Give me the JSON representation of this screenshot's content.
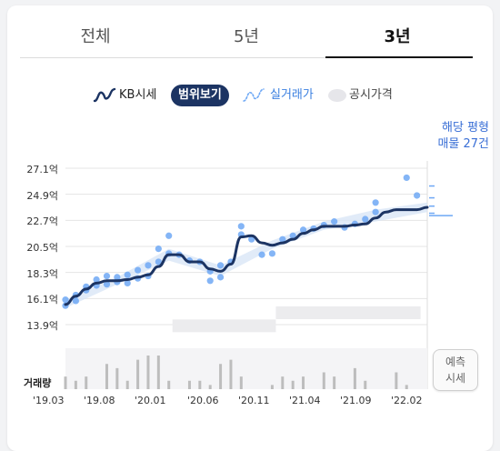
{
  "tabs": [
    {
      "label": "전체",
      "active": false
    },
    {
      "label": "5년",
      "active": false
    },
    {
      "label": "3년",
      "active": true
    }
  ],
  "legend": {
    "kb_label": "KB시세",
    "range_button": "범위보기",
    "actual_label": "실거래가",
    "official_label": "공시가격"
  },
  "note": {
    "line1": "해당 평형",
    "line2": "매물 27건"
  },
  "volume_label": "거래량",
  "predict_button": {
    "line1": "예측",
    "line2": "시세"
  },
  "colors": {
    "kb_line": "#1c3463",
    "actual": "#6ea8f5",
    "range_band": "#d7e4f5",
    "official": "#ececee",
    "active_tab": "#111111",
    "note_text": "#3a6fd6"
  },
  "chart_data": {
    "type": "line",
    "y_ticks": [
      "27.1억",
      "24.9억",
      "22.7억",
      "20.5억",
      "18.3억",
      "16.1억",
      "13.9억"
    ],
    "y_tick_values": [
      27.1,
      24.9,
      22.7,
      20.5,
      18.3,
      16.1,
      13.9
    ],
    "ylim": [
      13.9,
      27.1
    ],
    "x_ticks": [
      "'19.03",
      "'19.08",
      "'20.01",
      "'20.06",
      "'20.11",
      "'21.04",
      "'21.09",
      "'22.02"
    ],
    "xlim": [
      "2019-03",
      "2022-02"
    ],
    "series": [
      {
        "name": "KB시세",
        "x": [
          "2019-03",
          "2019-04",
          "2019-05",
          "2019-06",
          "2019-07",
          "2019-08",
          "2019-09",
          "2019-10",
          "2019-11",
          "2019-12",
          "2020-01",
          "2020-02",
          "2020-03",
          "2020-04",
          "2020-05",
          "2020-06",
          "2020-07",
          "2020-08",
          "2020-09",
          "2020-10",
          "2020-11",
          "2020-12",
          "2021-01",
          "2021-02",
          "2021-03",
          "2021-04",
          "2021-05",
          "2021-06",
          "2021-07",
          "2021-08",
          "2021-09",
          "2021-10",
          "2021-11",
          "2021-12",
          "2022-01",
          "2022-02"
        ],
        "values": [
          15.6,
          16.3,
          16.9,
          17.4,
          17.6,
          17.6,
          17.7,
          17.9,
          18.1,
          18.8,
          19.8,
          19.8,
          19.2,
          19.2,
          18.6,
          18.4,
          19.0,
          21.3,
          21.4,
          20.8,
          20.6,
          20.8,
          21.1,
          21.6,
          21.9,
          22.2,
          22.2,
          22.2,
          22.3,
          22.4,
          22.9,
          23.4,
          23.6,
          23.6,
          23.6,
          23.8
        ]
      }
    ],
    "range_band": {
      "x": [
        "2019-03",
        "2019-08",
        "2020-01",
        "2020-06",
        "2020-11",
        "2021-04",
        "2021-09",
        "2022-02"
      ],
      "low": [
        15.3,
        17.3,
        19.3,
        18.0,
        20.3,
        21.9,
        22.6,
        23.4
      ],
      "high": [
        16.0,
        17.9,
        20.3,
        18.9,
        21.0,
        22.6,
        23.6,
        24.2
      ]
    },
    "actual_trades": [
      {
        "x": "2019-03",
        "y": 15.5
      },
      {
        "x": "2019-03",
        "y": 16.0
      },
      {
        "x": "2019-04",
        "y": 15.9
      },
      {
        "x": "2019-04",
        "y": 16.4
      },
      {
        "x": "2019-05",
        "y": 16.8
      },
      {
        "x": "2019-05",
        "y": 17.1
      },
      {
        "x": "2019-06",
        "y": 17.2
      },
      {
        "x": "2019-06",
        "y": 17.7
      },
      {
        "x": "2019-07",
        "y": 17.3
      },
      {
        "x": "2019-07",
        "y": 18.0
      },
      {
        "x": "2019-08",
        "y": 17.5
      },
      {
        "x": "2019-08",
        "y": 17.9
      },
      {
        "x": "2019-09",
        "y": 17.4
      },
      {
        "x": "2019-09",
        "y": 18.1
      },
      {
        "x": "2019-10",
        "y": 17.8
      },
      {
        "x": "2019-10",
        "y": 18.5
      },
      {
        "x": "2019-11",
        "y": 18.0
      },
      {
        "x": "2019-11",
        "y": 18.9
      },
      {
        "x": "2019-12",
        "y": 19.2
      },
      {
        "x": "2019-12",
        "y": 20.3
      },
      {
        "x": "2020-01",
        "y": 19.9
      },
      {
        "x": "2020-01",
        "y": 21.4
      },
      {
        "x": "2020-02",
        "y": 19.8
      },
      {
        "x": "2020-03",
        "y": 19.3
      },
      {
        "x": "2020-04",
        "y": 19.2
      },
      {
        "x": "2020-05",
        "y": 17.6
      },
      {
        "x": "2020-05",
        "y": 18.4
      },
      {
        "x": "2020-06",
        "y": 17.9
      },
      {
        "x": "2020-06",
        "y": 18.9
      },
      {
        "x": "2020-07",
        "y": 19.2
      },
      {
        "x": "2020-08",
        "y": 21.5
      },
      {
        "x": "2020-08",
        "y": 22.2
      },
      {
        "x": "2020-09",
        "y": 21.1
      },
      {
        "x": "2020-10",
        "y": 19.8
      },
      {
        "x": "2020-11",
        "y": 19.9
      },
      {
        "x": "2020-12",
        "y": 21.1
      },
      {
        "x": "2021-01",
        "y": 21.4
      },
      {
        "x": "2021-02",
        "y": 21.9
      },
      {
        "x": "2021-03",
        "y": 22.0
      },
      {
        "x": "2021-04",
        "y": 22.3
      },
      {
        "x": "2021-05",
        "y": 22.6
      },
      {
        "x": "2021-06",
        "y": 22.1
      },
      {
        "x": "2021-07",
        "y": 22.4
      },
      {
        "x": "2021-08",
        "y": 22.8
      },
      {
        "x": "2021-09",
        "y": 23.4
      },
      {
        "x": "2021-09",
        "y": 24.2
      },
      {
        "x": "2021-12",
        "y": 26.3
      },
      {
        "x": "2022-01",
        "y": 24.8
      }
    ],
    "official_price_bars": [
      {
        "from": "2020-01",
        "to": "2020-11",
        "level": 13.8
      },
      {
        "from": "2020-11",
        "to": "2022-01",
        "level": 14.9
      }
    ],
    "volume": {
      "x": [
        "2019-03",
        "2019-04",
        "2019-05",
        "2019-06",
        "2019-07",
        "2019-08",
        "2019-09",
        "2019-10",
        "2019-11",
        "2019-12",
        "2020-01",
        "2020-02",
        "2020-03",
        "2020-04",
        "2020-05",
        "2020-06",
        "2020-07",
        "2020-08",
        "2020-09",
        "2020-10",
        "2020-11",
        "2020-12",
        "2021-01",
        "2021-02",
        "2021-03",
        "2021-04",
        "2021-05",
        "2021-06",
        "2021-07",
        "2021-08",
        "2021-09",
        "2021-10",
        "2021-11",
        "2021-12",
        "2022-01",
        "2022-02"
      ],
      "values": [
        3,
        2,
        3,
        0,
        6,
        5,
        2,
        7,
        8,
        8,
        2,
        0,
        2,
        2,
        1,
        6,
        7,
        3,
        0,
        0,
        1,
        3,
        2,
        3,
        0,
        4,
        3,
        0,
        5,
        2,
        0,
        0,
        4,
        1,
        0,
        0
      ]
    },
    "listing_ticks_y": [
      25.6,
      24.6,
      23.9,
      23.3,
      23.1
    ]
  }
}
